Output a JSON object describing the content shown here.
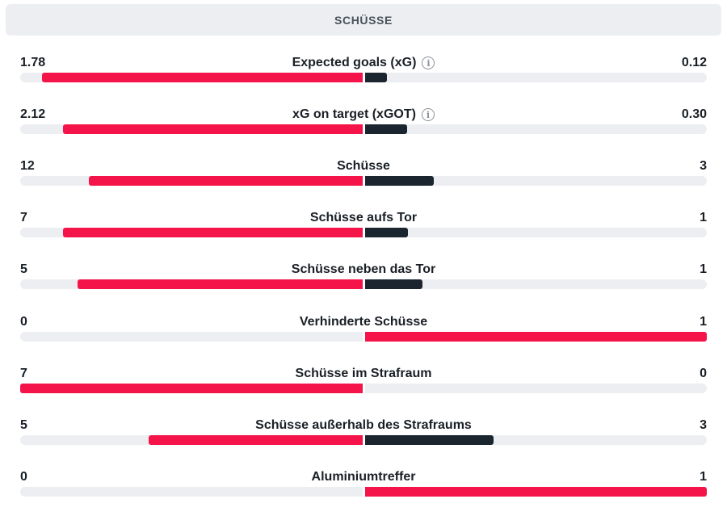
{
  "section": {
    "title": "SCHÜSSE"
  },
  "colors": {
    "leading_bar": "#f5144a",
    "trailing_bar": "#1b2530",
    "track": "#eceef1",
    "header_bg": "#eceef1"
  },
  "stats": [
    {
      "label": "Expected goals (xG)",
      "home": "1.78",
      "away": "0.12",
      "home_share": 0.937,
      "away_share": 0.063,
      "info_icon": true,
      "home_leading": true,
      "away_leading": false
    },
    {
      "label": "xG on target (xGOT)",
      "home": "2.12",
      "away": "0.30",
      "home_share": 0.876,
      "away_share": 0.124,
      "info_icon": true,
      "home_leading": true,
      "away_leading": false
    },
    {
      "label": "Schüsse",
      "home": "12",
      "away": "3",
      "home_share": 0.8,
      "away_share": 0.2,
      "info_icon": false,
      "home_leading": true,
      "away_leading": false
    },
    {
      "label": "Schüsse aufs Tor",
      "home": "7",
      "away": "1",
      "home_share": 0.875,
      "away_share": 0.125,
      "info_icon": false,
      "home_leading": true,
      "away_leading": false
    },
    {
      "label": "Schüsse neben das Tor",
      "home": "5",
      "away": "1",
      "home_share": 0.833,
      "away_share": 0.167,
      "info_icon": false,
      "home_leading": true,
      "away_leading": false
    },
    {
      "label": "Verhinderte Schüsse",
      "home": "0",
      "away": "1",
      "home_share": 0,
      "away_share": 1,
      "info_icon": false,
      "home_leading": false,
      "away_leading": true
    },
    {
      "label": "Schüsse im Strafraum",
      "home": "7",
      "away": "0",
      "home_share": 1,
      "away_share": 0,
      "info_icon": false,
      "home_leading": true,
      "away_leading": false
    },
    {
      "label": "Schüsse außerhalb des Strafraums",
      "home": "5",
      "away": "3",
      "home_share": 0.625,
      "away_share": 0.375,
      "info_icon": false,
      "home_leading": true,
      "away_leading": false
    },
    {
      "label": "Aluminiumtreffer",
      "home": "0",
      "away": "1",
      "home_share": 0,
      "away_share": 1,
      "info_icon": false,
      "home_leading": false,
      "away_leading": true
    }
  ]
}
